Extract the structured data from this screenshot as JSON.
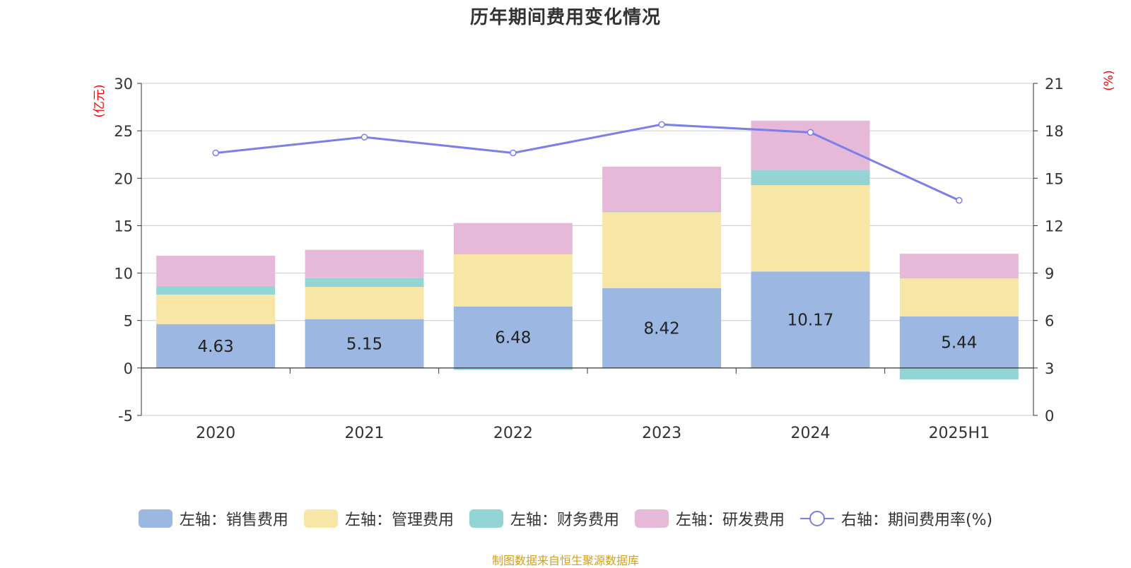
{
  "title": "历年期间费用变化情况",
  "source_note": "制图数据来自恒生聚源数据库",
  "colors": {
    "sales": "#9bb7e2",
    "admin": "#f8e6a6",
    "finance": "#93d4d4",
    "rnd": "#e6b9d9",
    "rate": "#7b7fe8",
    "axis_unit": "#ff0000"
  },
  "chart_data": {
    "type": "bar",
    "title": "历年期间费用变化情况",
    "stacked": true,
    "categories": [
      "2020",
      "2021",
      "2022",
      "2023",
      "2024",
      "2025H1"
    ],
    "left_axis": {
      "unit_label": "(亿元)",
      "ylim": [
        -5,
        30
      ],
      "ticks": [
        -5,
        0,
        5,
        10,
        15,
        20,
        25,
        30
      ]
    },
    "right_axis": {
      "unit_label": "(%)",
      "ylim": [
        0,
        21
      ],
      "ticks": [
        0,
        3,
        6,
        9,
        12,
        15,
        18,
        21
      ]
    },
    "grid": true,
    "legend_position": "bottom",
    "series": [
      {
        "name": "左轴：销售费用",
        "key": "sales",
        "axis": "left",
        "type": "bar",
        "values": [
          4.63,
          5.15,
          6.48,
          8.42,
          10.17,
          5.44
        ],
        "show_labels": true
      },
      {
        "name": "左轴：管理费用",
        "key": "admin",
        "axis": "left",
        "type": "bar",
        "values": [
          3.1,
          3.4,
          5.5,
          8.0,
          9.1,
          4.0
        ]
      },
      {
        "name": "左轴：财务费用",
        "key": "finance",
        "axis": "left",
        "type": "bar",
        "values": [
          0.9,
          0.9,
          -0.2,
          0.1,
          1.6,
          -1.2
        ]
      },
      {
        "name": "左轴：研发费用",
        "key": "rnd",
        "axis": "left",
        "type": "bar",
        "values": [
          3.2,
          3.0,
          3.3,
          4.7,
          5.2,
          2.6
        ]
      },
      {
        "name": "右轴：期间费用率(%)",
        "key": "rate",
        "axis": "right",
        "type": "line",
        "values": [
          16.6,
          17.6,
          16.6,
          18.4,
          17.9,
          13.6
        ]
      }
    ]
  }
}
